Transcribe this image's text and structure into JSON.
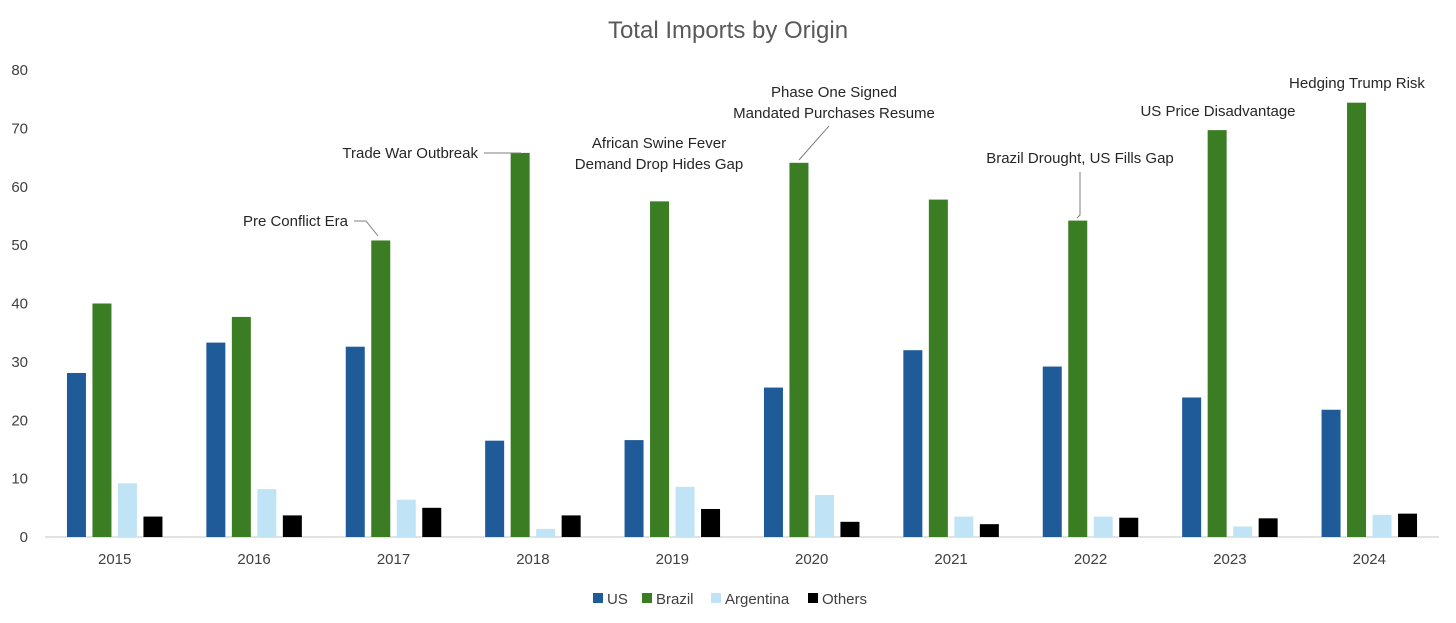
{
  "chart_data": {
    "type": "bar",
    "title": "Total Imports by Origin",
    "xlabel": "",
    "ylabel": "",
    "ylim": [
      0,
      80
    ],
    "yticks": [
      0,
      10,
      20,
      30,
      40,
      50,
      60,
      70,
      80
    ],
    "grid": false,
    "legend_position": "bottom",
    "categories": [
      "2015",
      "2016",
      "2017",
      "2018",
      "2019",
      "2020",
      "2021",
      "2022",
      "2023",
      "2024"
    ],
    "series": [
      {
        "name": "US",
        "color": "#1F5A99",
        "values": [
          28.1,
          33.3,
          32.6,
          16.5,
          16.6,
          25.6,
          32.0,
          29.2,
          23.9,
          21.8
        ]
      },
      {
        "name": "Brazil",
        "color": "#3B7D23",
        "values": [
          40.0,
          37.7,
          50.8,
          65.8,
          57.5,
          64.1,
          57.8,
          54.2,
          69.7,
          74.4
        ]
      },
      {
        "name": "Argentina",
        "color": "#C0E4F5",
        "values": [
          9.2,
          8.2,
          6.4,
          1.4,
          8.6,
          7.2,
          3.5,
          3.5,
          1.8,
          3.8
        ]
      },
      {
        "name": "Others",
        "color": "#000000",
        "values": [
          3.5,
          3.7,
          5.0,
          3.7,
          4.8,
          2.6,
          2.2,
          3.3,
          3.2,
          4.0
        ]
      }
    ],
    "annotations": [
      {
        "category": "2017",
        "series": "Brazil",
        "lines": [
          "Pre Conflict Era"
        ]
      },
      {
        "category": "2018",
        "series": "Brazil",
        "lines": [
          "Trade War Outbreak"
        ]
      },
      {
        "category": "2019",
        "series": "Brazil",
        "lines": [
          "African Swine Fever",
          "Demand Drop Hides Gap"
        ]
      },
      {
        "category": "2020",
        "series": "Brazil",
        "lines": [
          "Phase One Signed",
          "Mandated Purchases Resume"
        ]
      },
      {
        "category": "2022",
        "series": "Brazil",
        "lines": [
          "Brazil Drought, US Fills Gap"
        ]
      },
      {
        "category": "2023",
        "series": "Brazil",
        "lines": [
          "US Price Disadvantage"
        ]
      },
      {
        "category": "2024",
        "series": "Brazil",
        "lines": [
          "Hedging Trump Risk"
        ]
      }
    ]
  }
}
